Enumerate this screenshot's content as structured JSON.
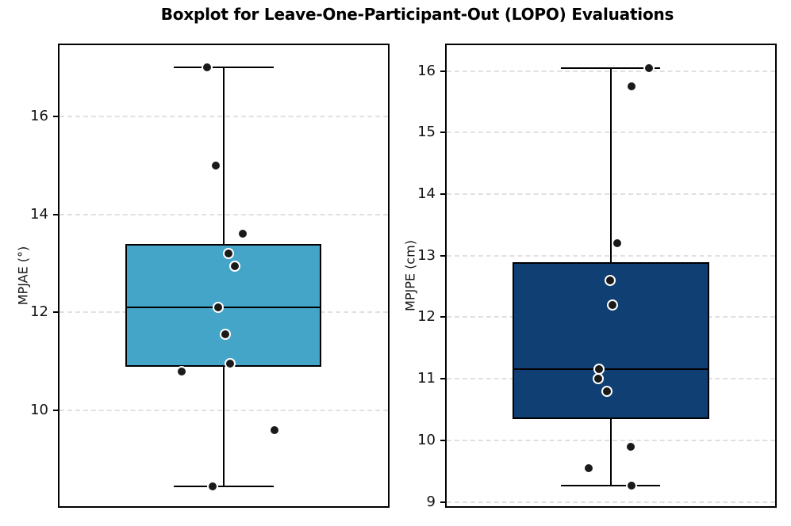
{
  "chart_data": {
    "type": "boxplot",
    "title": "Boxplot for Leave-One-Participant-Out (LOPO) Evaluations",
    "layout": "1 row x 2 subplots",
    "grid": "horizontal dashed gridlines at each y tick",
    "gridline_color": "#e0e0e0",
    "subplots": [
      {
        "id": "mpjae",
        "ylabel": "MPJAE (°)",
        "ylim": [
          8.05,
          17.45
        ],
        "yticks": [
          10,
          12,
          14,
          16
        ],
        "box_color": "#44a5c9",
        "box_stats": {
          "whisker_low": 8.45,
          "q1": 10.9,
          "median": 12.1,
          "q3": 13.4,
          "whisker_high": 17.0
        },
        "points": [
          {
            "value": 17.0,
            "x": 0.45
          },
          {
            "value": 15.0,
            "x": 0.475
          },
          {
            "value": 13.6,
            "x": 0.559
          },
          {
            "value": 13.2,
            "x": 0.515
          },
          {
            "value": 12.95,
            "x": 0.535
          },
          {
            "value": 12.1,
            "x": 0.484
          },
          {
            "value": 11.55,
            "x": 0.504
          },
          {
            "value": 10.95,
            "x": 0.52
          },
          {
            "value": 10.8,
            "x": 0.371
          },
          {
            "value": 9.6,
            "x": 0.655
          },
          {
            "value": 8.45,
            "x": 0.465
          }
        ],
        "box_x": {
          "left": 0.2,
          "width": 0.596
        },
        "cap_x": {
          "left": 0.348,
          "width": 0.304
        }
      },
      {
        "id": "mpjpe",
        "ylabel": "MPJPE (cm)",
        "ylim": [
          8.93,
          16.42
        ],
        "yticks": [
          9,
          10,
          11,
          12,
          13,
          14,
          15,
          16
        ],
        "box_color": "#0f3f73",
        "box_stats": {
          "whisker_low": 9.27,
          "q1": 10.35,
          "median": 11.15,
          "q3": 12.9,
          "whisker_high": 16.05
        },
        "points": [
          {
            "value": 16.05,
            "x": 0.616
          },
          {
            "value": 15.75,
            "x": 0.562
          },
          {
            "value": 13.2,
            "x": 0.519
          },
          {
            "value": 12.6,
            "x": 0.498
          },
          {
            "value": 12.2,
            "x": 0.504
          },
          {
            "value": 11.15,
            "x": 0.464
          },
          {
            "value": 11.0,
            "x": 0.462
          },
          {
            "value": 10.8,
            "x": 0.488
          },
          {
            "value": 9.9,
            "x": 0.56
          },
          {
            "value": 9.55,
            "x": 0.433
          },
          {
            "value": 9.27,
            "x": 0.562
          }
        ],
        "box_x": {
          "left": 0.2,
          "width": 0.6
        },
        "cap_x": {
          "left": 0.349,
          "width": 0.3
        }
      }
    ],
    "style": {
      "point_fill": "#1a1a1a",
      "point_edge": "#ffffff",
      "line_color": "#000000",
      "background": "#ffffff"
    }
  }
}
